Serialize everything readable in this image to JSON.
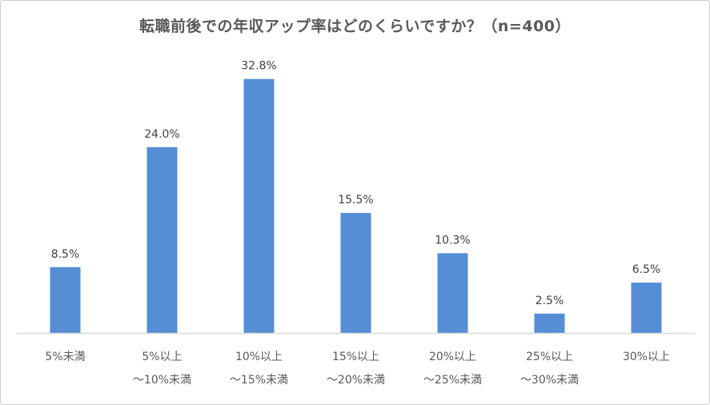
{
  "chart_data": {
    "type": "bar",
    "title": "転職前後での年収アップ率はどのくらいですか？（n=400）",
    "categories": [
      [
        "5%未満"
      ],
      [
        "5%以上",
        "～10%未満"
      ],
      [
        "10%以上",
        "～15%未満"
      ],
      [
        "15%以上",
        "～20%未満"
      ],
      [
        "20%以上",
        "～25%未満"
      ],
      [
        "25%以上",
        "～30%未満"
      ],
      [
        "30%以上"
      ]
    ],
    "values": [
      8.5,
      24.0,
      32.8,
      15.5,
      10.3,
      2.5,
      6.5
    ],
    "data_labels": [
      "8.5%",
      "24.0%",
      "32.8%",
      "15.5%",
      "10.3%",
      "2.5%",
      "6.5%"
    ],
    "xlabel": "",
    "ylabel": "",
    "ylim": [
      0,
      40
    ],
    "grid": false,
    "legend": "none",
    "colors": {
      "bar": "#558ED5",
      "axis": "#D9D9D9",
      "title": "#595959"
    }
  }
}
